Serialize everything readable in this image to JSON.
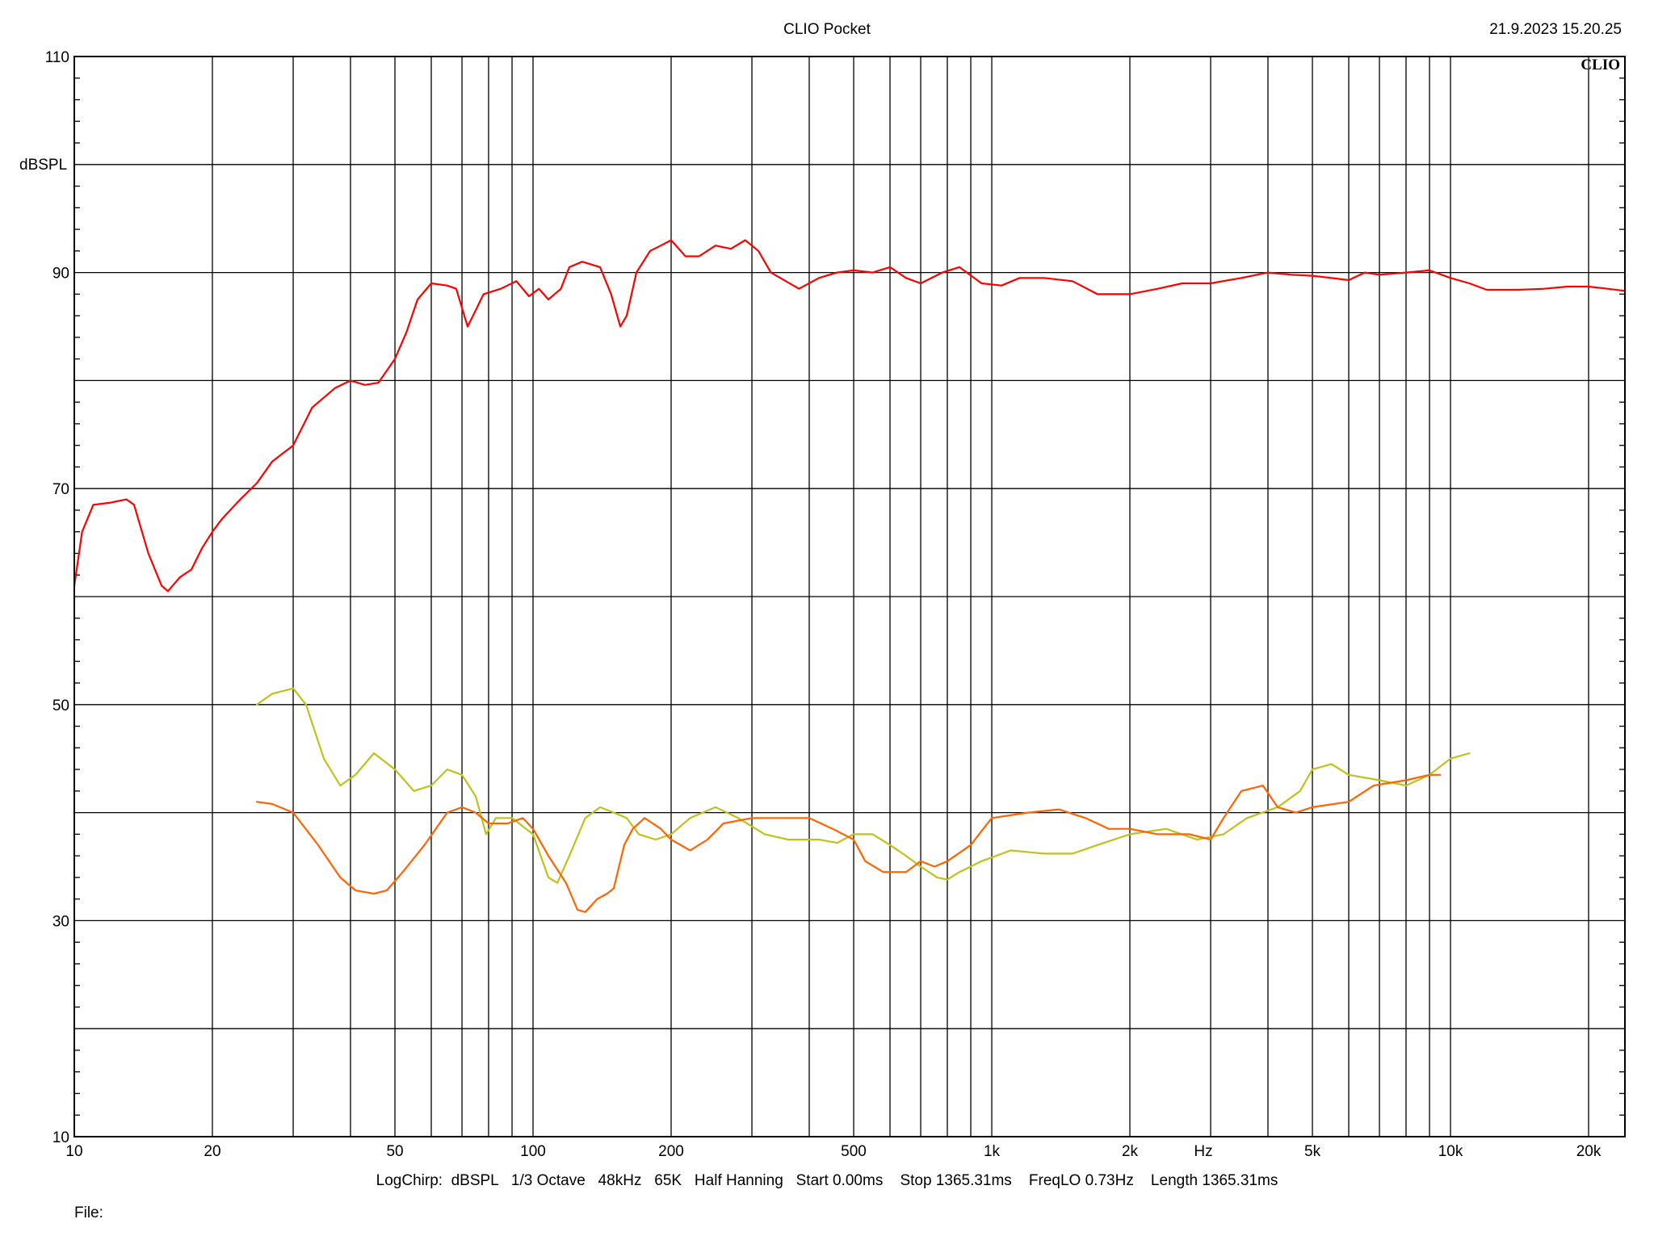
{
  "header": {
    "title": "CLIO Pocket",
    "timestamp": "21.9.2023 15.20.25",
    "logo": "CLIO"
  },
  "footer": {
    "settings": "LogChirp:  dBSPL   1/3 Octave   48kHz   65K   Half Hanning   Start 0.00ms    Stop 1365.31ms    FreqLO 0.73Hz    Length 1365.31ms",
    "file_label": "File:"
  },
  "chart_data": {
    "type": "line",
    "title": "CLIO Pocket",
    "xlabel": "Hz",
    "ylabel": "dBSPL",
    "xscale": "log",
    "xlim": [
      10,
      24000
    ],
    "ylim": [
      10,
      110
    ],
    "grid": true,
    "x_tick_labels": [
      {
        "v": 10,
        "label": "10"
      },
      {
        "v": 20,
        "label": "20"
      },
      {
        "v": 50,
        "label": "50"
      },
      {
        "v": 100,
        "label": "100"
      },
      {
        "v": 200,
        "label": "200"
      },
      {
        "v": 500,
        "label": "500"
      },
      {
        "v": 1000,
        "label": "1k"
      },
      {
        "v": 2000,
        "label": "2k"
      },
      {
        "v": 5000,
        "label": "5k"
      },
      {
        "v": 10000,
        "label": "10k"
      },
      {
        "v": 20000,
        "label": "20k"
      }
    ],
    "y_tick_labels": [
      {
        "v": 10,
        "label": "10"
      },
      {
        "v": 30,
        "label": "30"
      },
      {
        "v": 50,
        "label": "50"
      },
      {
        "v": 70,
        "label": "70"
      },
      {
        "v": 90,
        "label": "90"
      },
      {
        "v": 110,
        "label": "110"
      }
    ],
    "colors": {
      "grid": "#000000",
      "background": "#ffffff"
    },
    "series": [
      {
        "color": "#ff0000",
        "points": [
          [
            10,
            61
          ],
          [
            10.4,
            66
          ],
          [
            11,
            68.5
          ],
          [
            12,
            68.7
          ],
          [
            13,
            69
          ],
          [
            13.5,
            68.5
          ],
          [
            14.5,
            64
          ],
          [
            15.5,
            61
          ],
          [
            16,
            60.5
          ],
          [
            17,
            61.8
          ],
          [
            18,
            62.5
          ],
          [
            19,
            64.5
          ],
          [
            20,
            66
          ],
          [
            21,
            67.2
          ],
          [
            23,
            69
          ],
          [
            25,
            70.5
          ],
          [
            27,
            72.5
          ],
          [
            30,
            74
          ],
          [
            33,
            77.5
          ],
          [
            37,
            79.3
          ],
          [
            40,
            80
          ],
          [
            43,
            79.6
          ],
          [
            46,
            79.8
          ],
          [
            50,
            82
          ],
          [
            53,
            84.5
          ],
          [
            56,
            87.5
          ],
          [
            60,
            89
          ],
          [
            65,
            88.8
          ],
          [
            68,
            88.5
          ],
          [
            72,
            85
          ],
          [
            75,
            86.5
          ],
          [
            78,
            88
          ],
          [
            85,
            88.5
          ],
          [
            92,
            89.2
          ],
          [
            98,
            87.8
          ],
          [
            103,
            88.5
          ],
          [
            108,
            87.5
          ],
          [
            115,
            88.5
          ],
          [
            120,
            90.5
          ],
          [
            128,
            91
          ],
          [
            140,
            90.5
          ],
          [
            148,
            88
          ],
          [
            155,
            85
          ],
          [
            160,
            86
          ],
          [
            168,
            90
          ],
          [
            180,
            92
          ],
          [
            190,
            92.5
          ],
          [
            200,
            93
          ],
          [
            215,
            91.5
          ],
          [
            230,
            91.5
          ],
          [
            250,
            92.5
          ],
          [
            270,
            92.2
          ],
          [
            290,
            93
          ],
          [
            310,
            92
          ],
          [
            330,
            90
          ],
          [
            380,
            88.5
          ],
          [
            420,
            89.5
          ],
          [
            460,
            90
          ],
          [
            500,
            90.2
          ],
          [
            550,
            90
          ],
          [
            600,
            90.5
          ],
          [
            650,
            89.5
          ],
          [
            700,
            89
          ],
          [
            780,
            90
          ],
          [
            850,
            90.5
          ],
          [
            950,
            89
          ],
          [
            1050,
            88.8
          ],
          [
            1150,
            89.5
          ],
          [
            1300,
            89.5
          ],
          [
            1500,
            89.2
          ],
          [
            1700,
            88
          ],
          [
            2000,
            88
          ],
          [
            2300,
            88.5
          ],
          [
            2600,
            89
          ],
          [
            3000,
            89
          ],
          [
            3500,
            89.5
          ],
          [
            4000,
            90
          ],
          [
            4500,
            89.8
          ],
          [
            5000,
            89.7
          ],
          [
            5500,
            89.5
          ],
          [
            6000,
            89.3
          ],
          [
            6500,
            90
          ],
          [
            7000,
            89.8
          ],
          [
            8000,
            90
          ],
          [
            9000,
            90.2
          ],
          [
            10000,
            89.5
          ],
          [
            11000,
            89
          ],
          [
            12000,
            88.4
          ],
          [
            14000,
            88.4
          ],
          [
            16000,
            88.5
          ],
          [
            18000,
            88.7
          ],
          [
            20000,
            88.7
          ],
          [
            22000,
            88.5
          ],
          [
            24000,
            88.3
          ]
        ]
      },
      {
        "color": "#bfc21b",
        "points": [
          [
            25,
            50
          ],
          [
            27,
            51
          ],
          [
            30,
            51.5
          ],
          [
            32,
            50
          ],
          [
            35,
            45
          ],
          [
            38,
            42.5
          ],
          [
            41,
            43.5
          ],
          [
            45,
            45.5
          ],
          [
            50,
            44
          ],
          [
            55,
            42
          ],
          [
            60,
            42.5
          ],
          [
            65,
            44
          ],
          [
            70,
            43.5
          ],
          [
            75,
            41.5
          ],
          [
            79,
            38
          ],
          [
            83,
            39.5
          ],
          [
            90,
            39.5
          ],
          [
            100,
            38
          ],
          [
            108,
            34
          ],
          [
            113,
            33.5
          ],
          [
            120,
            36
          ],
          [
            130,
            39.5
          ],
          [
            140,
            40.5
          ],
          [
            150,
            40
          ],
          [
            160,
            39.5
          ],
          [
            170,
            38
          ],
          [
            185,
            37.5
          ],
          [
            200,
            38
          ],
          [
            220,
            39.5
          ],
          [
            250,
            40.5
          ],
          [
            280,
            39.5
          ],
          [
            320,
            38
          ],
          [
            360,
            37.5
          ],
          [
            420,
            37.5
          ],
          [
            460,
            37.2
          ],
          [
            500,
            38
          ],
          [
            550,
            38
          ],
          [
            600,
            37
          ],
          [
            650,
            36
          ],
          [
            700,
            35
          ],
          [
            760,
            34
          ],
          [
            800,
            33.8
          ],
          [
            850,
            34.5
          ],
          [
            950,
            35.5
          ],
          [
            1100,
            36.5
          ],
          [
            1300,
            36.2
          ],
          [
            1500,
            36.2
          ],
          [
            1700,
            37
          ],
          [
            2000,
            38
          ],
          [
            2400,
            38.5
          ],
          [
            2800,
            37.5
          ],
          [
            3200,
            38
          ],
          [
            3600,
            39.5
          ],
          [
            4200,
            40.5
          ],
          [
            4700,
            42
          ],
          [
            5000,
            44
          ],
          [
            5500,
            44.5
          ],
          [
            6000,
            43.5
          ],
          [
            7000,
            43
          ],
          [
            8000,
            42.5
          ],
          [
            9000,
            43.5
          ],
          [
            10000,
            45
          ],
          [
            11000,
            45.5
          ]
        ]
      },
      {
        "color": "#ff6400",
        "points": [
          [
            25,
            41
          ],
          [
            27,
            40.8
          ],
          [
            30,
            40
          ],
          [
            34,
            37
          ],
          [
            38,
            34
          ],
          [
            41,
            32.8
          ],
          [
            45,
            32.5
          ],
          [
            48,
            32.8
          ],
          [
            52,
            34.5
          ],
          [
            58,
            37
          ],
          [
            65,
            40
          ],
          [
            70,
            40.5
          ],
          [
            75,
            40
          ],
          [
            80,
            39
          ],
          [
            88,
            39
          ],
          [
            95,
            39.5
          ],
          [
            100,
            38.5
          ],
          [
            108,
            36
          ],
          [
            118,
            33.5
          ],
          [
            125,
            31
          ],
          [
            130,
            30.8
          ],
          [
            138,
            32
          ],
          [
            145,
            32.5
          ],
          [
            150,
            33
          ],
          [
            158,
            37
          ],
          [
            165,
            38.5
          ],
          [
            175,
            39.5
          ],
          [
            190,
            38.5
          ],
          [
            200,
            37.5
          ],
          [
            220,
            36.5
          ],
          [
            240,
            37.5
          ],
          [
            260,
            39
          ],
          [
            300,
            39.5
          ],
          [
            340,
            39.5
          ],
          [
            400,
            39.5
          ],
          [
            450,
            38.5
          ],
          [
            500,
            37.5
          ],
          [
            530,
            35.5
          ],
          [
            580,
            34.5
          ],
          [
            650,
            34.5
          ],
          [
            700,
            35.5
          ],
          [
            750,
            35
          ],
          [
            800,
            35.5
          ],
          [
            900,
            37
          ],
          [
            1000,
            39.5
          ],
          [
            1200,
            40
          ],
          [
            1400,
            40.3
          ],
          [
            1600,
            39.5
          ],
          [
            1800,
            38.5
          ],
          [
            2000,
            38.5
          ],
          [
            2300,
            38
          ],
          [
            2700,
            38
          ],
          [
            3000,
            37.5
          ],
          [
            3200,
            39.5
          ],
          [
            3500,
            42
          ],
          [
            3900,
            42.5
          ],
          [
            4200,
            40.5
          ],
          [
            4600,
            40
          ],
          [
            5000,
            40.5
          ],
          [
            6000,
            41
          ],
          [
            6800,
            42.5
          ],
          [
            8000,
            43
          ],
          [
            9000,
            43.5
          ],
          [
            9500,
            43.5
          ]
        ]
      }
    ]
  }
}
